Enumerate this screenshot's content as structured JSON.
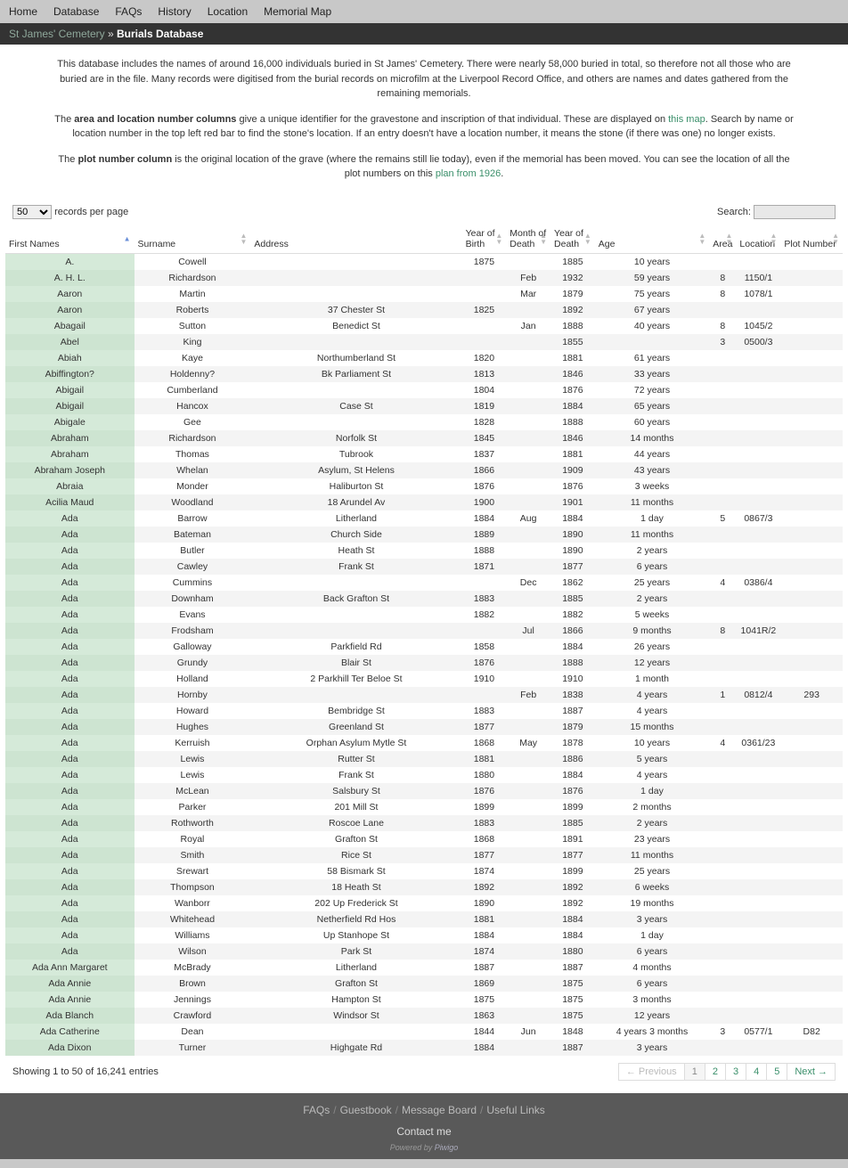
{
  "nav": [
    "Home",
    "Database",
    "FAQs",
    "History",
    "Location",
    "Memorial Map"
  ],
  "breadcrumb": {
    "root": "St James' Cemetery",
    "sep": " » ",
    "current": "Burials Database"
  },
  "intro": {
    "p1": "This database includes the names of around 16,000 individuals buried in St James' Cemetery. There were nearly 58,000 buried in total, so therefore not all those who are buried are in the file. Many records were digitised from the burial records on microfilm at the Liverpool Record Office, and others are names and dates gathered from the remaining memorials.",
    "p2a": "The ",
    "p2b": "area and location number columns",
    "p2c": " give a unique identifier for the gravestone and inscription of that individual. These are displayed on ",
    "p2link": "this map",
    "p2d": ". Search by name or location number in the top left red bar to find the stone's location. If an entry doesn't have a location number, it means the stone (if there was one) no longer exists.",
    "p3a": "The ",
    "p3b": "plot number column",
    "p3c": " is the original location of the grave (where the remains still lie today), even if the memorial has been moved. You can see the location of all the plot numbers on this ",
    "p3link": "plan from 1926",
    "p3d": "."
  },
  "controls": {
    "perpage_value": "50",
    "perpage_suffix": "records per page",
    "search_label": "Search:"
  },
  "columns": [
    "First Names",
    "Surname",
    "Address",
    "Year of Birth",
    "Month of Death",
    "Year of Death",
    "Age",
    "Area",
    "Location",
    "Plot Number"
  ],
  "rows": [
    [
      "A.",
      "Cowell",
      "",
      "1875",
      "",
      "1885",
      "10 years",
      "",
      "",
      ""
    ],
    [
      "A. H. L.",
      "Richardson",
      "",
      "",
      "Feb",
      "1932",
      "59 years",
      "8",
      "1150/1",
      ""
    ],
    [
      "Aaron",
      "Martin",
      "",
      "",
      "Mar",
      "1879",
      "75 years",
      "8",
      "1078/1",
      ""
    ],
    [
      "Aaron",
      "Roberts",
      "37 Chester St",
      "1825",
      "",
      "1892",
      "67 years",
      "",
      "",
      ""
    ],
    [
      "Abagail",
      "Sutton",
      "Benedict St",
      "",
      "Jan",
      "1888",
      "40 years",
      "8",
      "1045/2",
      ""
    ],
    [
      "Abel",
      "King",
      "",
      "",
      "",
      "1855",
      "",
      "3",
      "0500/3",
      ""
    ],
    [
      "Abiah",
      "Kaye",
      "Northumberland St",
      "1820",
      "",
      "1881",
      "61 years",
      "",
      "",
      ""
    ],
    [
      "Abiffington?",
      "Holdenny?",
      "Bk Parliament St",
      "1813",
      "",
      "1846",
      "33 years",
      "",
      "",
      ""
    ],
    [
      "Abigail",
      "Cumberland",
      "",
      "1804",
      "",
      "1876",
      "72 years",
      "",
      "",
      ""
    ],
    [
      "Abigail",
      "Hancox",
      "Case St",
      "1819",
      "",
      "1884",
      "65 years",
      "",
      "",
      ""
    ],
    [
      "Abigale",
      "Gee",
      "",
      "1828",
      "",
      "1888",
      "60 years",
      "",
      "",
      ""
    ],
    [
      "Abraham",
      "Richardson",
      "Norfolk St",
      "1845",
      "",
      "1846",
      "14 months",
      "",
      "",
      ""
    ],
    [
      "Abraham",
      "Thomas",
      "Tubrook",
      "1837",
      "",
      "1881",
      "44 years",
      "",
      "",
      ""
    ],
    [
      "Abraham Joseph",
      "Whelan",
      "Asylum, St Helens",
      "1866",
      "",
      "1909",
      "43 years",
      "",
      "",
      ""
    ],
    [
      "Abraia",
      "Monder",
      "Haliburton St",
      "1876",
      "",
      "1876",
      "3 weeks",
      "",
      "",
      ""
    ],
    [
      "Acilia Maud",
      "Woodland",
      "18 Arundel Av",
      "1900",
      "",
      "1901",
      "11 months",
      "",
      "",
      ""
    ],
    [
      "Ada",
      "Barrow",
      "Litherland",
      "1884",
      "Aug",
      "1884",
      "1 day",
      "5",
      "0867/3",
      ""
    ],
    [
      "Ada",
      "Bateman",
      "Church Side",
      "1889",
      "",
      "1890",
      "11 months",
      "",
      "",
      ""
    ],
    [
      "Ada",
      "Butler",
      "Heath St",
      "1888",
      "",
      "1890",
      "2 years",
      "",
      "",
      ""
    ],
    [
      "Ada",
      "Cawley",
      "Frank St",
      "1871",
      "",
      "1877",
      "6 years",
      "",
      "",
      ""
    ],
    [
      "Ada",
      "Cummins",
      "",
      "",
      "Dec",
      "1862",
      "25 years",
      "4",
      "0386/4",
      ""
    ],
    [
      "Ada",
      "Downham",
      "Back Grafton St",
      "1883",
      "",
      "1885",
      "2 years",
      "",
      "",
      ""
    ],
    [
      "Ada",
      "Evans",
      "",
      "1882",
      "",
      "1882",
      "5 weeks",
      "",
      "",
      ""
    ],
    [
      "Ada",
      "Frodsham",
      "",
      "",
      "Jul",
      "1866",
      "9 months",
      "8",
      "1041R/2",
      ""
    ],
    [
      "Ada",
      "Galloway",
      "Parkfield Rd",
      "1858",
      "",
      "1884",
      "26 years",
      "",
      "",
      ""
    ],
    [
      "Ada",
      "Grundy",
      "Blair St",
      "1876",
      "",
      "1888",
      "12 years",
      "",
      "",
      ""
    ],
    [
      "Ada",
      "Holland",
      "2 Parkhill Ter Beloe St",
      "1910",
      "",
      "1910",
      "1 month",
      "",
      "",
      ""
    ],
    [
      "Ada",
      "Hornby",
      "",
      "",
      "Feb",
      "1838",
      "4 years",
      "1",
      "0812/4",
      "293"
    ],
    [
      "Ada",
      "Howard",
      "Bembridge St",
      "1883",
      "",
      "1887",
      "4 years",
      "",
      "",
      ""
    ],
    [
      "Ada",
      "Hughes",
      "Greenland St",
      "1877",
      "",
      "1879",
      "15 months",
      "",
      "",
      ""
    ],
    [
      "Ada",
      "Kerruish",
      "Orphan Asylum Mytle St",
      "1868",
      "May",
      "1878",
      "10 years",
      "4",
      "0361/23",
      ""
    ],
    [
      "Ada",
      "Lewis",
      "Rutter St",
      "1881",
      "",
      "1886",
      "5 years",
      "",
      "",
      ""
    ],
    [
      "Ada",
      "Lewis",
      "Frank St",
      "1880",
      "",
      "1884",
      "4 years",
      "",
      "",
      ""
    ],
    [
      "Ada",
      "McLean",
      "Salsbury St",
      "1876",
      "",
      "1876",
      "1 day",
      "",
      "",
      ""
    ],
    [
      "Ada",
      "Parker",
      "201 Mill St",
      "1899",
      "",
      "1899",
      "2 months",
      "",
      "",
      ""
    ],
    [
      "Ada",
      "Rothworth",
      "Roscoe Lane",
      "1883",
      "",
      "1885",
      "2 years",
      "",
      "",
      ""
    ],
    [
      "Ada",
      "Royal",
      "Grafton St",
      "1868",
      "",
      "1891",
      "23 years",
      "",
      "",
      ""
    ],
    [
      "Ada",
      "Smith",
      "Rice St",
      "1877",
      "",
      "1877",
      "11 months",
      "",
      "",
      ""
    ],
    [
      "Ada",
      "Srewart",
      "58 Bismark St",
      "1874",
      "",
      "1899",
      "25 years",
      "",
      "",
      ""
    ],
    [
      "Ada",
      "Thompson",
      "18 Heath St",
      "1892",
      "",
      "1892",
      "6 weeks",
      "",
      "",
      ""
    ],
    [
      "Ada",
      "Wanborr",
      "202 Up Frederick St",
      "1890",
      "",
      "1892",
      "19 months",
      "",
      "",
      ""
    ],
    [
      "Ada",
      "Whitehead",
      "Netherfield Rd Hos",
      "1881",
      "",
      "1884",
      "3 years",
      "",
      "",
      ""
    ],
    [
      "Ada",
      "Williams",
      "Up Stanhope St",
      "1884",
      "",
      "1884",
      "1 day",
      "",
      "",
      ""
    ],
    [
      "Ada",
      "Wilson",
      "Park St",
      "1874",
      "",
      "1880",
      "6 years",
      "",
      "",
      ""
    ],
    [
      "Ada Ann Margaret",
      "McBrady",
      "Litherland",
      "1887",
      "",
      "1887",
      "4 months",
      "",
      "",
      ""
    ],
    [
      "Ada Annie",
      "Brown",
      "Grafton St",
      "1869",
      "",
      "1875",
      "6 years",
      "",
      "",
      ""
    ],
    [
      "Ada Annie",
      "Jennings",
      "Hampton St",
      "1875",
      "",
      "1875",
      "3 months",
      "",
      "",
      ""
    ],
    [
      "Ada Blanch",
      "Crawford",
      "Windsor St",
      "1863",
      "",
      "1875",
      "12 years",
      "",
      "",
      ""
    ],
    [
      "Ada Catherine",
      "Dean",
      "",
      "1844",
      "Jun",
      "1848",
      "4 years 3 months",
      "3",
      "0577/1",
      "D82"
    ],
    [
      "Ada Dixon",
      "Turner",
      "Highgate Rd",
      "1884",
      "",
      "1887",
      "3 years",
      "",
      "",
      ""
    ]
  ],
  "table_info": "Showing 1 to 50 of 16,241 entries",
  "pager": {
    "prev": "Previous",
    "pages": [
      "1",
      "2",
      "3",
      "4",
      "5"
    ],
    "next": "Next"
  },
  "footer": {
    "links": [
      "FAQs",
      "Guestbook",
      "Message Board",
      "Useful Links"
    ],
    "contact": "Contact me",
    "powered_prefix": "Powered by ",
    "powered_link": "Piwigo"
  }
}
